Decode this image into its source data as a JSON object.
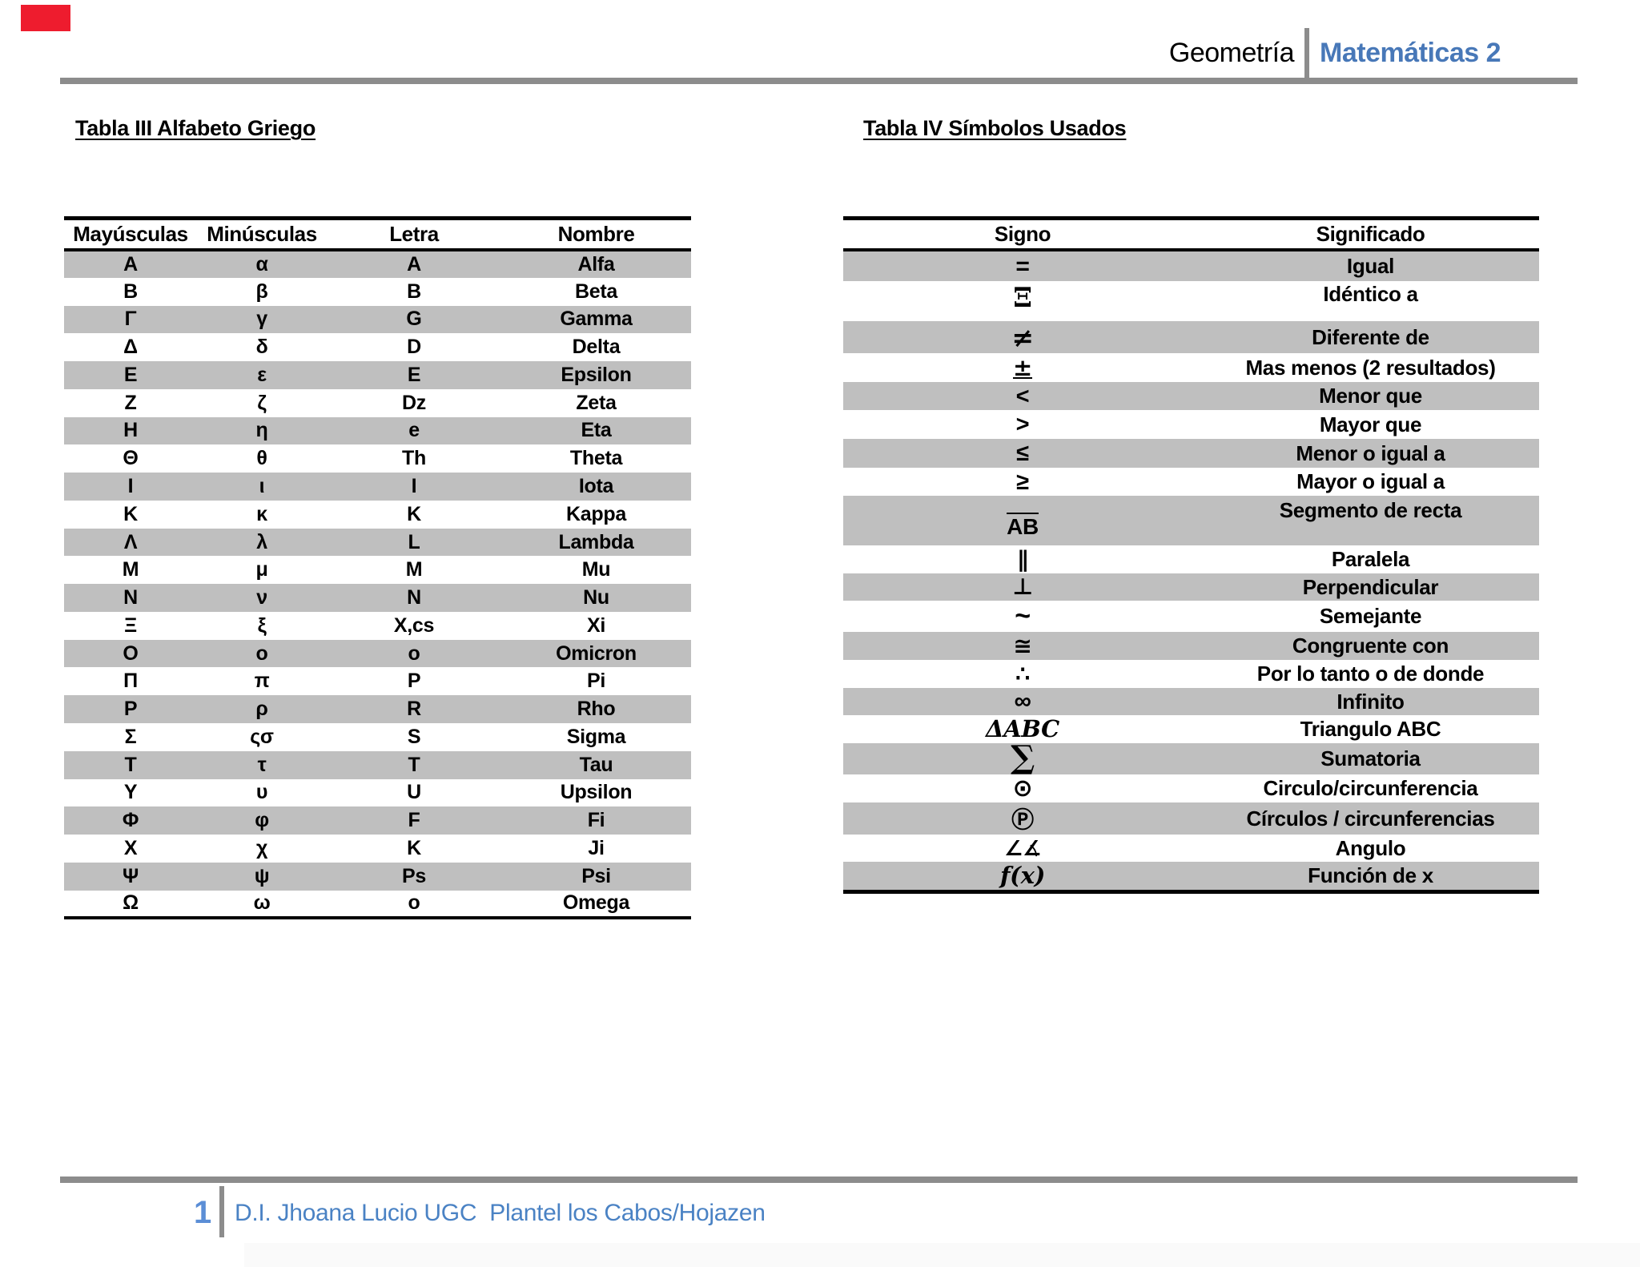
{
  "page": {
    "accent_blue": "#4878b8",
    "footer_blue": "#4a82c4",
    "stripe_gray": "#bfbfbf",
    "rule_gray": "#8c8c8c",
    "red_mark": "#ee1c2e"
  },
  "header": {
    "course": "Geometría",
    "subject": "Matemáticas 2"
  },
  "greek_table": {
    "title": "Tabla III Alfabeto Griego",
    "columns": [
      "Mayúsculas",
      "Minúsculas",
      "Letra",
      "Nombre"
    ],
    "rows": [
      [
        "A",
        "α",
        "A",
        "Alfa"
      ],
      [
        "B",
        "β",
        "B",
        "Beta"
      ],
      [
        "Γ",
        "γ",
        "G",
        "Gamma"
      ],
      [
        "Δ",
        "δ",
        "D",
        "Delta"
      ],
      [
        "E",
        "ε",
        "E",
        "Epsilon"
      ],
      [
        "Z",
        "ζ",
        "Dz",
        "Zeta"
      ],
      [
        "H",
        "η",
        "e",
        "Eta"
      ],
      [
        "Θ",
        "θ",
        "Th",
        "Theta"
      ],
      [
        "I",
        "ι",
        "I",
        "Iota"
      ],
      [
        "K",
        "κ",
        "K",
        "Kappa"
      ],
      [
        "Λ",
        "λ",
        "L",
        "Lambda"
      ],
      [
        "M",
        "μ",
        "M",
        "Mu"
      ],
      [
        "N",
        "ν",
        "N",
        "Nu"
      ],
      [
        "Ξ",
        "ξ",
        "X,cs",
        "Xi"
      ],
      [
        "O",
        "o",
        "o",
        "Omicron"
      ],
      [
        "Π",
        "π",
        "P",
        "Pi"
      ],
      [
        "P",
        "ρ",
        "R",
        "Rho"
      ],
      [
        "Σ",
        "ςσ",
        "S",
        "Sigma"
      ],
      [
        "T",
        "τ",
        "T",
        "Tau"
      ],
      [
        "Y",
        "υ",
        "U",
        "Upsilon"
      ],
      [
        "Φ",
        "φ",
        "F",
        "Fi"
      ],
      [
        "X",
        "χ",
        "K",
        "Ji"
      ],
      [
        "Ψ",
        "ψ",
        "Ps",
        "Psi"
      ],
      [
        "Ω",
        "ω",
        "o",
        "Omega"
      ]
    ]
  },
  "symbols_table": {
    "title": "Tabla IV Símbolos Usados",
    "columns": [
      "Signo",
      "Significado"
    ],
    "rows": [
      {
        "sign": "=",
        "meaning": "Igual"
      },
      {
        "sign": "Ξ",
        "meaning": "Idéntico a"
      },
      {
        "sign": "≠",
        "meaning": "Diferente de"
      },
      {
        "sign": "±",
        "meaning": "Mas menos (2 resultados)"
      },
      {
        "sign": "<",
        "meaning": "Menor que"
      },
      {
        "sign": ">",
        "meaning": "Mayor que"
      },
      {
        "sign": "≤",
        "meaning": "Menor o igual a"
      },
      {
        "sign": "≥",
        "meaning": "Mayor o igual a"
      },
      {
        "sign": "AB",
        "meaning": "Segmento de recta"
      },
      {
        "sign": "∥",
        "meaning": "Paralela"
      },
      {
        "sign": "⊥",
        "meaning": "Perpendicular"
      },
      {
        "sign": "~",
        "meaning": "Semejante"
      },
      {
        "sign": "≅",
        "meaning": "Congruente con"
      },
      {
        "sign": "∴",
        "meaning": "Por lo tanto o de donde"
      },
      {
        "sign": "∞",
        "meaning": "Infinito"
      },
      {
        "sign": "ΔABC",
        "meaning": "Triangulo ABC"
      },
      {
        "sign": "∑",
        "meaning": "Sumatoria"
      },
      {
        "sign": "⊙",
        "meaning": "Circulo/circunferencia"
      },
      {
        "sign": "Ⓟ",
        "meaning": "Círculos / circunferencias"
      },
      {
        "sign": "∠∡",
        "meaning": "Angulo"
      },
      {
        "sign": "f(x)",
        "meaning": "Función de x"
      }
    ]
  },
  "footer": {
    "page_number": "1",
    "credit": "D.I. Jhoana Lucio UGC  Plantel los Cabos/Hojazen"
  }
}
